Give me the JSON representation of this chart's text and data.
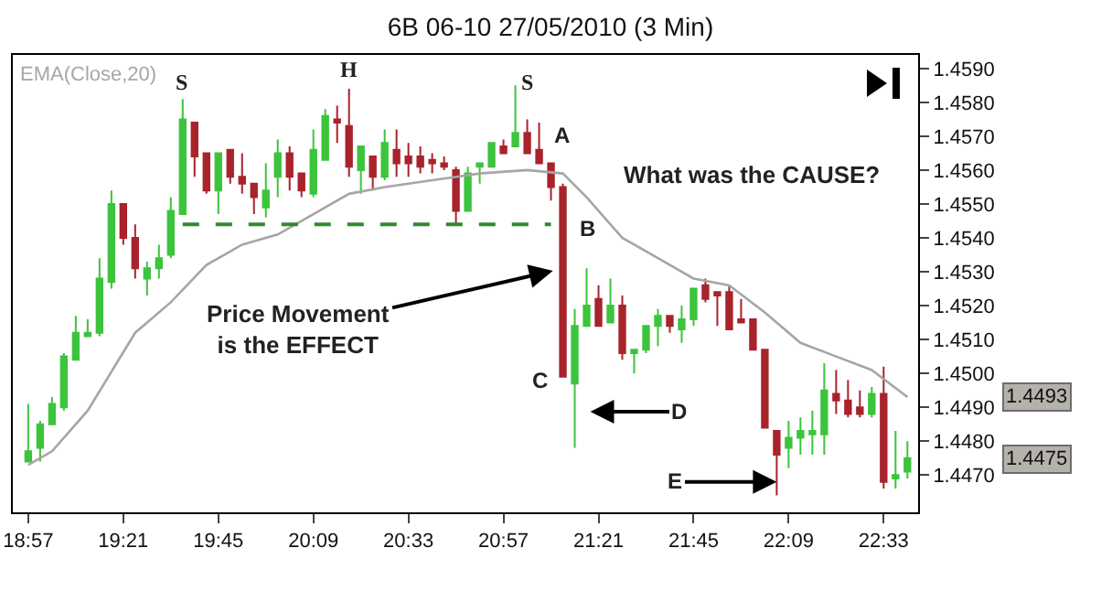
{
  "chart_data": {
    "type": "candlestick",
    "title": "6B 06-10 27/05/2010 (3 Min)",
    "x": [
      18.95,
      19,
      19.05,
      19.1,
      19.15,
      19.2,
      19.25,
      19.3,
      19.35,
      19.4,
      19.45,
      19.5,
      19.55,
      19.6,
      19.65,
      19.7,
      19.75,
      19.8,
      19.85,
      19.9,
      19.95,
      20,
      20.05,
      20.1,
      20.15,
      20.2,
      20.25,
      20.3,
      20.35,
      20.4,
      20.45,
      20.5,
      20.55,
      20.6,
      20.65,
      20.7,
      20.75,
      20.8,
      20.85,
      20.9,
      20.95,
      21,
      21.05,
      21.1,
      21.15,
      21.2,
      21.25,
      21.3,
      21.35,
      21.4,
      21.45,
      21.5,
      21.55,
      21.6,
      21.65,
      21.7,
      21.75,
      21.8,
      21.85,
      21.9,
      21.95,
      22,
      22.05,
      22.1,
      22.15,
      22.2,
      22.25,
      22.3,
      22.35,
      22.4,
      22.45,
      22.5,
      22.55,
      22.6,
      22.65
    ],
    "ohlc": [
      [
        1.4474,
        1.4491,
        1.4474,
        1.4477
      ],
      [
        1.4478,
        1.4486,
        1.4474,
        1.4485
      ],
      [
        1.4485,
        1.4493,
        1.4485,
        1.4491
      ],
      [
        1.449,
        1.4506,
        1.4489,
        1.4505
      ],
      [
        1.4504,
        1.4517,
        1.4504,
        1.4512
      ],
      [
        1.4511,
        1.4516,
        1.4511,
        1.4512
      ],
      [
        1.4512,
        1.4534,
        1.4511,
        1.4528
      ],
      [
        1.4527,
        1.4554,
        1.4525,
        1.455
      ],
      [
        1.455,
        1.455,
        1.4538,
        1.454
      ],
      [
        1.454,
        1.4544,
        1.4528,
        1.4531
      ],
      [
        1.4528,
        1.4533,
        1.4523,
        1.4531
      ],
      [
        1.4531,
        1.4538,
        1.4528,
        1.4534
      ],
      [
        1.4535,
        1.4552,
        1.4534,
        1.4548
      ],
      [
        1.4547,
        1.4581,
        1.4547,
        1.4575
      ],
      [
        1.4574,
        1.4574,
        1.4558,
        1.4564
      ],
      [
        1.4565,
        1.4565,
        1.4553,
        1.4554
      ],
      [
        1.4554,
        1.4565,
        1.4547,
        1.4565
      ],
      [
        1.4566,
        1.4566,
        1.4556,
        1.4558
      ],
      [
        1.4558,
        1.4565,
        1.4553,
        1.4556
      ],
      [
        1.4556,
        1.4556,
        1.4547,
        1.4552
      ],
      [
        1.4549,
        1.4562,
        1.4546,
        1.4554
      ],
      [
        1.4558,
        1.4569,
        1.4552,
        1.4565
      ],
      [
        1.4565,
        1.4567,
        1.4554,
        1.4558
      ],
      [
        1.4559,
        1.4559,
        1.4552,
        1.4554
      ],
      [
        1.4553,
        1.4572,
        1.4552,
        1.4566
      ],
      [
        1.4563,
        1.4578,
        1.4563,
        1.4576
      ],
      [
        1.4575,
        1.4579,
        1.4568,
        1.4574
      ],
      [
        1.4573,
        1.4584,
        1.4558,
        1.4561
      ],
      [
        1.456,
        1.4567,
        1.4553,
        1.4567
      ],
      [
        1.4564,
        1.4564,
        1.4554,
        1.4558
      ],
      [
        1.4558,
        1.4572,
        1.4557,
        1.4568
      ],
      [
        1.4566,
        1.4572,
        1.4558,
        1.4562
      ],
      [
        1.4564,
        1.4568,
        1.4558,
        1.4562
      ],
      [
        1.4564,
        1.4567,
        1.4559,
        1.4561
      ],
      [
        1.4563,
        1.4565,
        1.4559,
        1.4562
      ],
      [
        1.4562,
        1.4564,
        1.456,
        1.4561
      ],
      [
        1.456,
        1.4561,
        1.4544,
        1.4548
      ],
      [
        1.4548,
        1.4561,
        1.4548,
        1.4559
      ],
      [
        1.4561,
        1.4562,
        1.4556,
        1.4562
      ],
      [
        1.4561,
        1.4568,
        1.4561,
        1.4568
      ],
      [
        1.4567,
        1.4569,
        1.4565,
        1.4565
      ],
      [
        1.4567,
        1.4585,
        1.4567,
        1.4571
      ],
      [
        1.4571,
        1.4575,
        1.4565,
        1.4565
      ],
      [
        1.4566,
        1.4574,
        1.4562,
        1.4562
      ],
      [
        1.4562,
        1.4562,
        1.4551,
        1.4555
      ],
      [
        1.4555,
        1.4556,
        1.4499,
        1.4499
      ],
      [
        1.4497,
        1.4519,
        1.4478,
        1.4514
      ],
      [
        1.4514,
        1.4531,
        1.4514,
        1.452
      ],
      [
        1.4522,
        1.4526,
        1.4514,
        1.4514
      ],
      [
        1.4515,
        1.4528,
        1.4515,
        1.452
      ],
      [
        1.452,
        1.4523,
        1.4504,
        1.4506
      ],
      [
        1.4506,
        1.4507,
        1.45,
        1.4507
      ],
      [
        1.4507,
        1.4514,
        1.4506,
        1.4514
      ],
      [
        1.4514,
        1.4519,
        1.4508,
        1.4517
      ],
      [
        1.4517,
        1.4517,
        1.4512,
        1.4514
      ],
      [
        1.4513,
        1.452,
        1.4509,
        1.4516
      ],
      [
        1.4516,
        1.4525,
        1.4514,
        1.4525
      ],
      [
        1.4526,
        1.4528,
        1.4521,
        1.4522
      ],
      [
        1.4524,
        1.4524,
        1.4514,
        1.4523
      ],
      [
        1.4524,
        1.4526,
        1.4513,
        1.4513
      ],
      [
        1.4516,
        1.4522,
        1.4515,
        1.4515
      ],
      [
        1.4516,
        1.4516,
        1.4507,
        1.4507
      ],
      [
        1.4507,
        1.4507,
        1.4484,
        1.4484
      ],
      [
        1.4483,
        1.4483,
        1.4464,
        1.4476
      ],
      [
        1.4478,
        1.4486,
        1.4472,
        1.4481
      ],
      [
        1.4481,
        1.4487,
        1.4476,
        1.4483
      ],
      [
        1.4482,
        1.4489,
        1.4476,
        1.4483
      ],
      [
        1.4482,
        1.4503,
        1.4476,
        1.4495
      ],
      [
        1.4494,
        1.4501,
        1.4488,
        1.4492
      ],
      [
        1.4492,
        1.4498,
        1.4487,
        1.4488
      ],
      [
        1.449,
        1.4495,
        1.4487,
        1.4488
      ],
      [
        1.4488,
        1.4496,
        1.4487,
        1.4494
      ],
      [
        1.4494,
        1.4502,
        1.4466,
        1.4468
      ],
      [
        1.4469,
        1.4483,
        1.4466,
        1.447
      ],
      [
        1.4471,
        1.448,
        1.4469,
        1.4475
      ]
    ],
    "colors": [
      "#3cc43c",
      "#3cc43c",
      "#3cc43c",
      "#3cc43c",
      "#3cc43c",
      "#3cc43c",
      "#3cc43c",
      "#3cc43c",
      "#a8232b",
      "#a8232b",
      "#3cc43c",
      "#3cc43c",
      "#3cc43c",
      "#3cc43c",
      "#a8232b",
      "#a8232b",
      "#3cc43c",
      "#a8232b",
      "#a8232b",
      "#a8232b",
      "#3cc43c",
      "#3cc43c",
      "#a8232b",
      "#a8232b",
      "#3cc43c",
      "#3cc43c",
      "#a8232b",
      "#a8232b",
      "#3cc43c",
      "#a8232b",
      "#3cc43c",
      "#a8232b",
      "#a8232b",
      "#a8232b",
      "#a8232b",
      "#a8232b",
      "#a8232b",
      "#3cc43c",
      "#3cc43c",
      "#3cc43c",
      "#a8232b",
      "#3cc43c",
      "#a8232b",
      "#a8232b",
      "#a8232b",
      "#a8232b",
      "#3cc43c",
      "#3cc43c",
      "#a8232b",
      "#3cc43c",
      "#a8232b",
      "#3cc43c",
      "#3cc43c",
      "#3cc43c",
      "#a8232b",
      "#3cc43c",
      "#3cc43c",
      "#a8232b",
      "#a8232b",
      "#a8232b",
      "#a8232b",
      "#a8232b",
      "#a8232b",
      "#a8232b",
      "#3cc43c",
      "#3cc43c",
      "#3cc43c",
      "#3cc43c",
      "#a8232b",
      "#a8232b",
      "#a8232b",
      "#3cc43c",
      "#a8232b",
      "#3cc43c",
      "#3cc43c"
    ],
    "series": [
      {
        "type": "line",
        "name": "EMA(Close,20)",
        "color": "#a6a6a6",
        "x": [
          18.95,
          19.05,
          19.2,
          19.4,
          19.55,
          19.7,
          19.85,
          20,
          20.15,
          20.3,
          20.45,
          20.65,
          20.85,
          21.05,
          21.2,
          21.3,
          21.45,
          21.6,
          21.75,
          21.9,
          22.05,
          22.2,
          22.35,
          22.5,
          22.65
        ],
        "values": [
          1.4473,
          1.4477,
          1.4489,
          1.4512,
          1.4521,
          1.4532,
          1.4538,
          1.4541,
          1.4547,
          1.4553,
          1.4555,
          1.4557,
          1.4559,
          1.456,
          1.4559,
          1.4552,
          1.454,
          1.4534,
          1.4528,
          1.4526,
          1.4518,
          1.4509,
          1.4505,
          1.4501,
          1.4493
        ]
      },
      {
        "type": "line",
        "color": "#2e8b2e",
        "line_style": "dashed",
        "x": [
          19.6,
          21.15
        ],
        "values": [
          1.4544,
          1.4544
        ]
      }
    ],
    "xlim": [
      18.885,
      22.695
    ],
    "xticks": [
      {
        "value": 18.95,
        "label": "18:57"
      },
      {
        "value": 19.35,
        "label": "19:21"
      },
      {
        "value": 19.75,
        "label": "19:45"
      },
      {
        "value": 20.15,
        "label": "20:09"
      },
      {
        "value": 20.55,
        "label": "20:33"
      },
      {
        "value": 20.95,
        "label": "20:57"
      },
      {
        "value": 21.35,
        "label": "21:21"
      },
      {
        "value": 21.75,
        "label": "21:45"
      },
      {
        "value": 22.15,
        "label": "22:09"
      },
      {
        "value": 22.55,
        "label": "22:33"
      }
    ],
    "ylim": [
      1.4459,
      1.4594
    ],
    "yticks": [
      {
        "value": 1.447,
        "label": "1.4470"
      },
      {
        "value": 1.448,
        "label": "1.4480"
      },
      {
        "value": 1.449,
        "label": "1.4490"
      },
      {
        "value": 1.45,
        "label": "1.4500"
      },
      {
        "value": 1.451,
        "label": "1.4510"
      },
      {
        "value": 1.452,
        "label": "1.4520"
      },
      {
        "value": 1.453,
        "label": "1.4530"
      },
      {
        "value": 1.454,
        "label": "1.4540"
      },
      {
        "value": 1.455,
        "label": "1.4550"
      },
      {
        "value": 1.456,
        "label": "1.4560"
      },
      {
        "value": 1.457,
        "label": "1.4570"
      },
      {
        "value": 1.458,
        "label": "1.4580"
      },
      {
        "value": 1.459,
        "label": "1.4590"
      }
    ],
    "annotations": [
      "S",
      "H",
      "S",
      "A",
      "B",
      "C",
      "D",
      {
        "text": "E",
        "x": 22.1,
        "y": 1.4468
      },
      "Price Movement\nis the EFFECT",
      "What was the CAUSE?",
      "1.4493",
      "1.4475"
    ],
    "grid": false,
    "marker": "none"
  }
}
